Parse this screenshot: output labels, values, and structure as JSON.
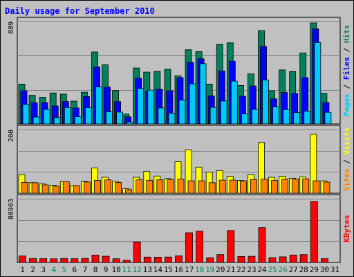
{
  "title": "Daily usage for September 2010",
  "colors": {
    "hits": "#00805c",
    "files": "#0000ff",
    "pages": "#00c8f8",
    "visits": "#ffff00",
    "sites": "#ff8000",
    "kbytes": "#ff0000",
    "panel_bg": "#c0c0c0",
    "title": "#0000ff",
    "weekend_day": "#00805c"
  },
  "side_labels": {
    "top": [
      {
        "text": "Pages",
        "color": "#00c8f8"
      },
      {
        "text": " / ",
        "color": "#000000"
      },
      {
        "text": "Files",
        "color": "#0000ff"
      },
      {
        "text": " / ",
        "color": "#000000"
      },
      {
        "text": "Hits",
        "color": "#00805c"
      }
    ],
    "middle": [
      {
        "text": "Sites",
        "color": "#ff8000"
      },
      {
        "text": " / ",
        "color": "#000000"
      },
      {
        "text": "Visits",
        "color": "#ffff00"
      }
    ],
    "bottom": [
      {
        "text": "KBytes",
        "color": "#ff0000"
      }
    ]
  },
  "chart_data": [
    {
      "type": "bar",
      "panel": "top",
      "ymax_label": "889",
      "ylim": [
        0,
        889
      ],
      "categories": [
        "1",
        "2",
        "3",
        "4",
        "5",
        "6",
        "7",
        "8",
        "9",
        "10",
        "11",
        "12",
        "13",
        "14",
        "15",
        "16",
        "17",
        "18",
        "19",
        "20",
        "21",
        "22",
        "23",
        "24",
        "25",
        "26",
        "27",
        "28",
        "29",
        "30",
        "31"
      ],
      "weekend_days": [
        "4",
        "5",
        "11",
        "12",
        "18",
        "19",
        "25",
        "26"
      ],
      "series": [
        {
          "name": "Hits",
          "color_key": "hits",
          "values": [
            346,
            248,
            232,
            269,
            259,
            198,
            275,
            625,
            513,
            290,
            86,
            486,
            450,
            456,
            474,
            417,
            644,
            627,
            346,
            690,
            704,
            334,
            434,
            809,
            288,
            469,
            455,
            615,
            877,
            266,
            0
          ]
        },
        {
          "name": "Files",
          "color_key": "files",
          "values": [
            288,
            184,
            185,
            157,
            195,
            139,
            238,
            493,
            320,
            194,
            62,
            396,
            285,
            301,
            288,
            401,
            534,
            566,
            244,
            459,
            544,
            240,
            330,
            673,
            218,
            273,
            264,
            402,
            824,
            186,
            0
          ]
        },
        {
          "name": "Pages",
          "color_key": "pages",
          "values": [
            170,
            60,
            126,
            55,
            143,
            63,
            141,
            321,
            106,
            103,
            17,
            307,
            294,
            139,
            94,
            206,
            347,
            523,
            144,
            199,
            372,
            88,
            127,
            381,
            149,
            125,
            99,
            111,
            707,
            101,
            0
          ]
        }
      ]
    },
    {
      "type": "bar",
      "panel": "middle",
      "ymax_label": "200",
      "ylim": [
        0,
        200
      ],
      "categories": [
        "1",
        "2",
        "3",
        "4",
        "5",
        "6",
        "7",
        "8",
        "9",
        "10",
        "11",
        "12",
        "13",
        "14",
        "15",
        "16",
        "17",
        "18",
        "19",
        "20",
        "21",
        "22",
        "23",
        "24",
        "25",
        "26",
        "27",
        "28",
        "29",
        "30",
        "31"
      ],
      "series": [
        {
          "name": "Visits",
          "color_key": "visits",
          "values": [
            58,
            33,
            29,
            25,
            36,
            24,
            37,
            79,
            50,
            38,
            14,
            50,
            68,
            54,
            46,
            99,
            136,
            82,
            66,
            71,
            53,
            40,
            58,
            159,
            50,
            53,
            47,
            51,
            185,
            39,
            0
          ]
        },
        {
          "name": "Sites",
          "color_key": "sites",
          "values": [
            34,
            33,
            26,
            22,
            36,
            24,
            35,
            40,
            42,
            34,
            11,
            42,
            40,
            42,
            43,
            44,
            39,
            39,
            33,
            41,
            41,
            39,
            43,
            44,
            40,
            44,
            44,
            45,
            39,
            35,
            0
          ]
        }
      ]
    },
    {
      "type": "bar",
      "panel": "bottom",
      "ymax_label": "80903",
      "ylim": [
        0,
        80903
      ],
      "categories": [
        "1",
        "2",
        "3",
        "4",
        "5",
        "6",
        "7",
        "8",
        "9",
        "10",
        "11",
        "12",
        "13",
        "14",
        "15",
        "16",
        "17",
        "18",
        "19",
        "20",
        "21",
        "22",
        "23",
        "24",
        "25",
        "26",
        "27",
        "28",
        "29",
        "30",
        "31"
      ],
      "series": [
        {
          "name": "KBytes",
          "color_key": "kbytes",
          "values": [
            8300,
            5000,
            4800,
            4600,
            5000,
            4800,
            5100,
            9400,
            7900,
            4700,
            2800,
            26000,
            6800,
            6700,
            6900,
            8400,
            37700,
            39700,
            6100,
            9900,
            40500,
            7600,
            7800,
            44200,
            6100,
            7100,
            9400,
            9900,
            77500,
            4800,
            0
          ]
        }
      ]
    }
  ]
}
